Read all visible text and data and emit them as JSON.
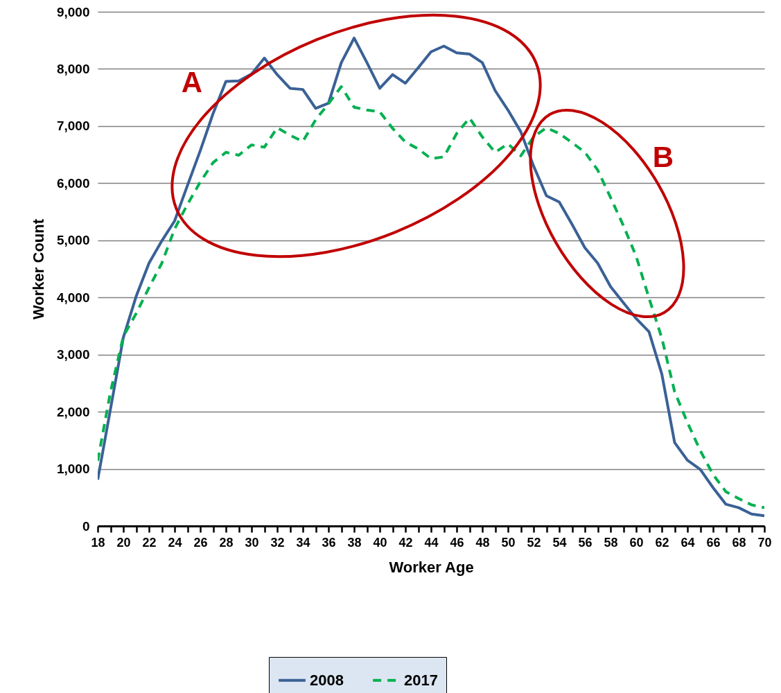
{
  "chart_data": {
    "type": "line",
    "xlabel": "Worker Age",
    "ylabel": "Worker Count",
    "x": [
      18,
      19,
      20,
      21,
      22,
      23,
      24,
      25,
      26,
      27,
      28,
      29,
      30,
      31,
      32,
      33,
      34,
      35,
      36,
      37,
      38,
      39,
      40,
      41,
      42,
      43,
      44,
      45,
      46,
      47,
      48,
      49,
      50,
      51,
      52,
      53,
      54,
      55,
      56,
      57,
      58,
      59,
      60,
      61,
      62,
      63,
      64,
      65,
      66,
      67,
      68,
      69,
      70
    ],
    "series": [
      {
        "name": "2008",
        "color": "#3a6196",
        "line_style": "solid",
        "values": [
          810,
          2050,
          3300,
          4020,
          4600,
          4990,
          5340,
          5960,
          6570,
          7220,
          7780,
          7790,
          7910,
          8190,
          7900,
          7660,
          7640,
          7310,
          7400,
          8110,
          8540,
          8110,
          7660,
          7900,
          7750,
          8020,
          8300,
          8400,
          8280,
          8260,
          8110,
          7620,
          7280,
          6900,
          6300,
          5780,
          5670,
          5280,
          4870,
          4600,
          4190,
          3910,
          3630,
          3400,
          2660,
          1460,
          1150,
          990,
          670,
          380,
          320,
          210,
          180
        ]
      },
      {
        "name": "2017",
        "color": "#00b050",
        "line_style": "dashed",
        "values": [
          1140,
          2350,
          3320,
          3720,
          4170,
          4600,
          5200,
          5630,
          6020,
          6360,
          6540,
          6490,
          6670,
          6630,
          6970,
          6840,
          6730,
          7110,
          7390,
          7690,
          7330,
          7280,
          7250,
          6960,
          6720,
          6600,
          6430,
          6460,
          6870,
          7140,
          6810,
          6540,
          6690,
          6480,
          6810,
          6970,
          6870,
          6710,
          6540,
          6230,
          5750,
          5260,
          4720,
          3990,
          3290,
          2350,
          1810,
          1320,
          900,
          600,
          480,
          370,
          320
        ]
      }
    ],
    "xlim": [
      18,
      70
    ],
    "xticks": [
      18,
      {
        "value": 19,
        "label": null
      },
      20,
      {
        "value": 21,
        "label": null
      },
      22,
      {
        "value": 23,
        "label": null
      },
      24,
      {
        "value": 25,
        "label": null
      },
      26,
      {
        "value": 27,
        "label": null
      },
      28,
      {
        "value": 29,
        "label": null
      },
      30,
      {
        "value": 31,
        "label": null
      },
      32,
      {
        "value": 33,
        "label": null
      },
      34,
      {
        "value": 35,
        "label": null
      },
      36,
      {
        "value": 37,
        "label": null
      },
      38,
      {
        "value": 39,
        "label": null
      },
      40,
      {
        "value": 41,
        "label": null
      },
      42,
      {
        "value": 43,
        "label": null
      },
      44,
      {
        "value": 45,
        "label": null
      },
      46,
      {
        "value": 47,
        "label": null
      },
      48,
      {
        "value": 49,
        "label": null
      },
      50,
      {
        "value": 51,
        "label": null
      },
      52,
      {
        "value": 53,
        "label": null
      },
      54,
      {
        "value": 55,
        "label": null
      },
      56,
      {
        "value": 57,
        "label": null
      },
      58,
      {
        "value": 59,
        "label": null
      },
      60,
      {
        "value": 61,
        "label": null
      },
      62,
      {
        "value": 63,
        "label": null
      },
      64,
      {
        "value": 65,
        "label": null
      },
      66,
      {
        "value": 67,
        "label": null
      },
      68,
      {
        "value": 69,
        "label": null
      },
      70
    ],
    "ylim": [
      0,
      9000
    ],
    "yticks": [
      {
        "value": 0,
        "label": "0"
      },
      {
        "value": 1000,
        "label": "1,000"
      },
      {
        "value": 2000,
        "label": "2,000"
      },
      {
        "value": 3000,
        "label": "3,000"
      },
      {
        "value": 4000,
        "label": "4,000"
      },
      {
        "value": 5000,
        "label": "5,000"
      },
      {
        "value": 6000,
        "label": "6,000"
      },
      {
        "value": 7000,
        "label": "7,000"
      },
      {
        "value": 8000,
        "label": "8,000"
      },
      {
        "value": 9000,
        "label": "9,000"
      }
    ],
    "annotations": [
      "A",
      "B"
    ],
    "grid": "y",
    "legend": "bottom"
  }
}
